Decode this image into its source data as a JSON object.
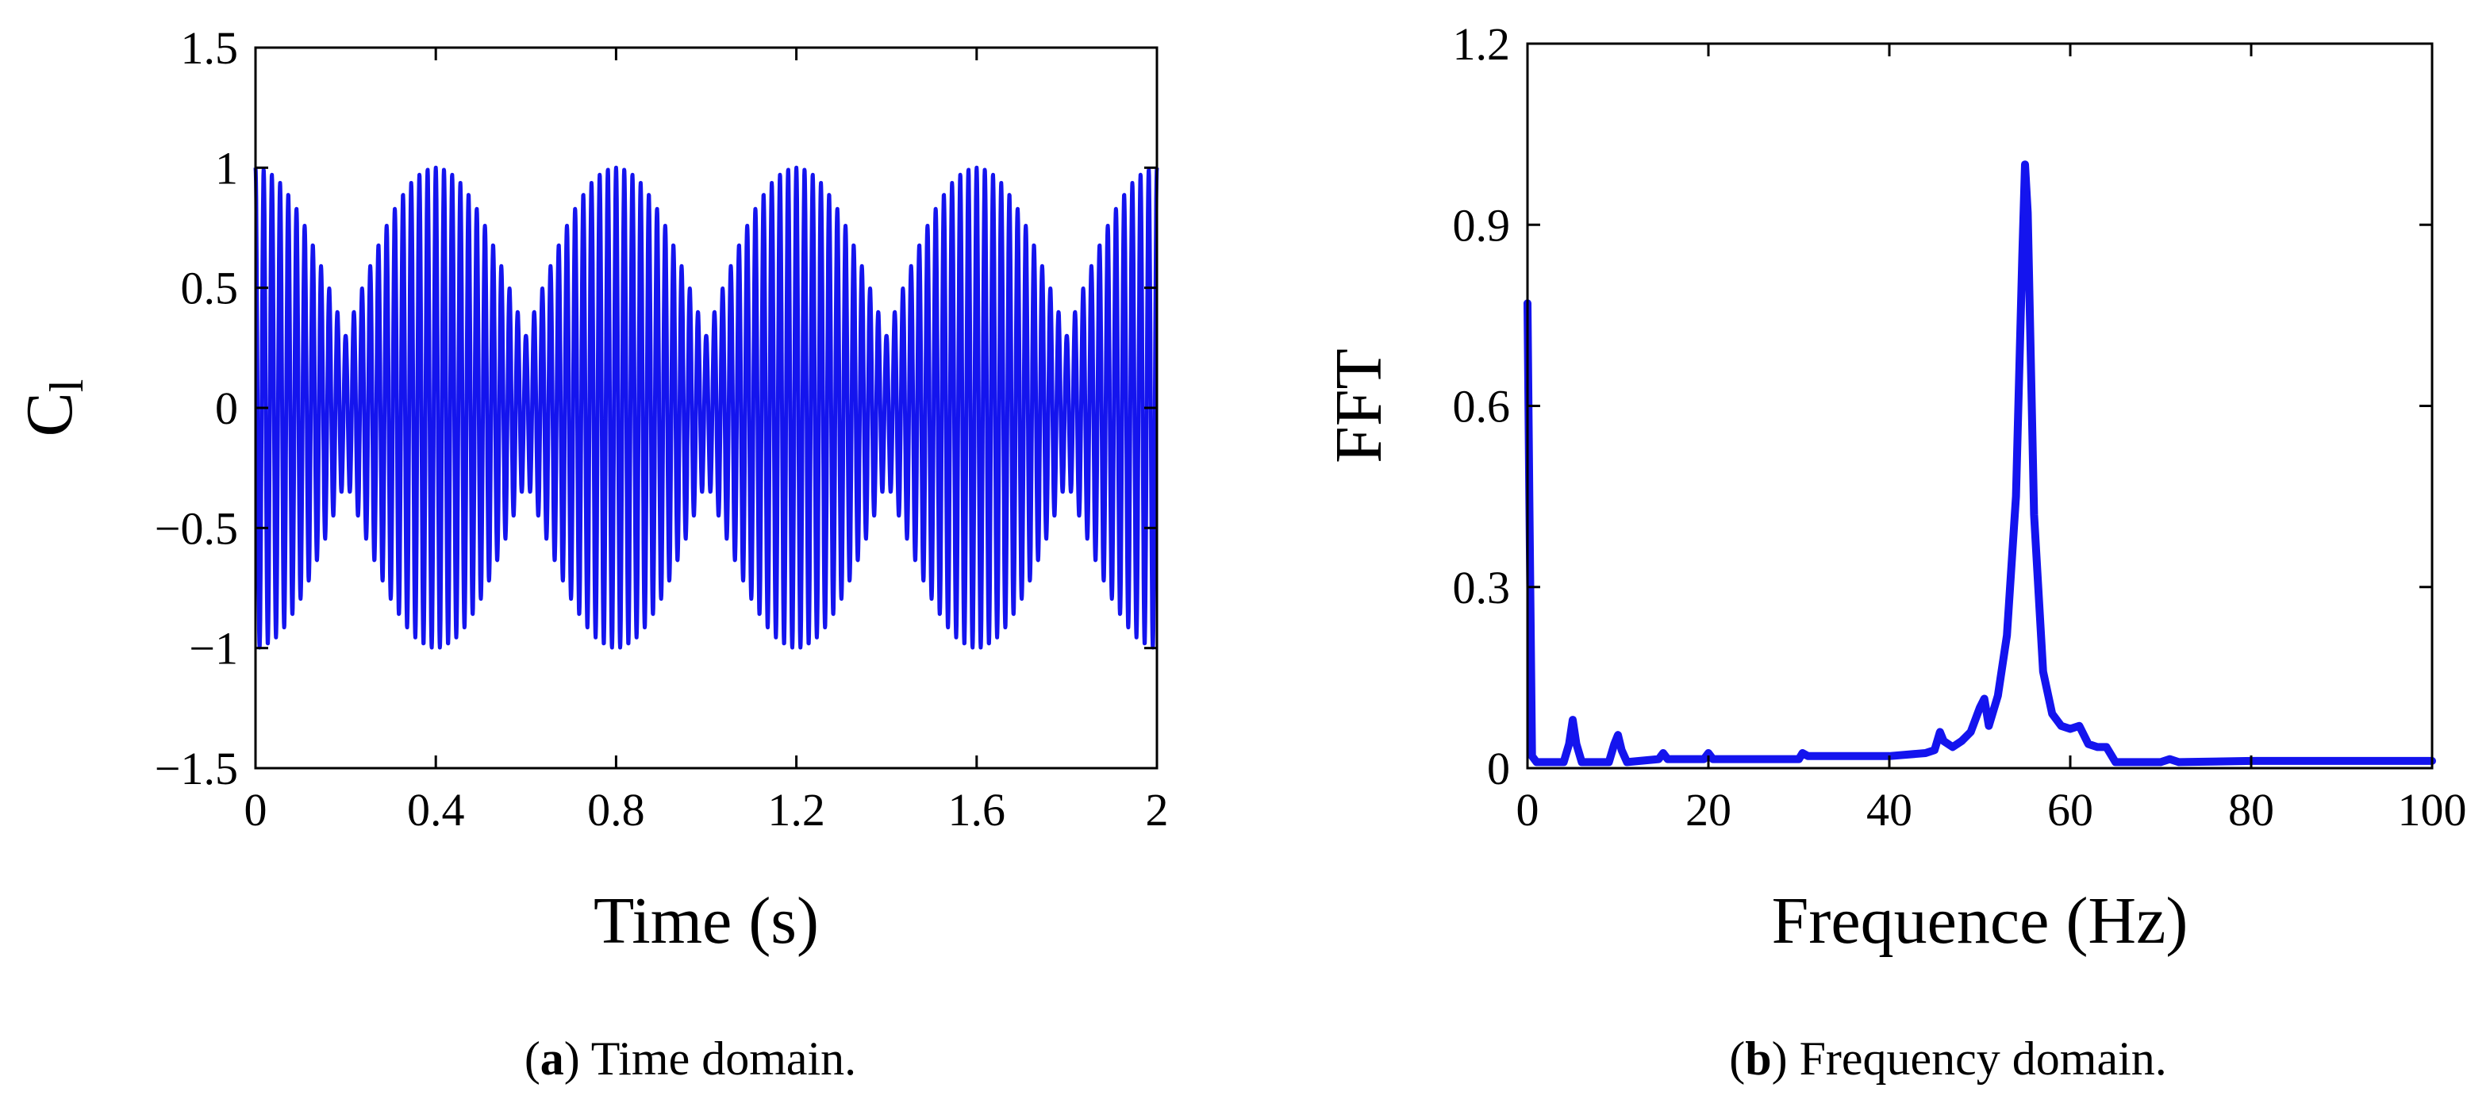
{
  "chart_data": [
    {
      "id": "a",
      "type": "line",
      "caption_label": "a",
      "caption_text": "Time domain.",
      "xlabel": "Time (s)",
      "ylabel": "C",
      "ylabel_subscript": "l",
      "xlim": [
        0,
        2
      ],
      "ylim": [
        -1.5,
        1.5
      ],
      "xticks": [
        "0",
        "0.4",
        "0.8",
        "1.2",
        "1.6",
        "2"
      ],
      "xtick_values": [
        0,
        0.4,
        0.8,
        1.2,
        1.6,
        2
      ],
      "yticks": [
        "1.5",
        "1",
        "0.5",
        "0",
        "-0.5",
        "-1",
        "-1.5"
      ],
      "ytick_values": [
        1.5,
        1,
        0.5,
        0,
        -0.5,
        -1,
        -1.5
      ],
      "series": [
        {
          "color": "#1414ee",
          "signal": {
            "kind": "beating oscillation",
            "carrier_frequency_hz": 55,
            "envelope_period_s": 0.4,
            "max_amplitude": 1.0,
            "min_envelope_amplitude": 0.3
          }
        }
      ]
    },
    {
      "id": "b",
      "type": "line",
      "caption_label": "b",
      "caption_text": "Frequency domain.",
      "xlabel": "Frequence (Hz)",
      "ylabel": "FFT",
      "xlim": [
        0,
        100
      ],
      "ylim": [
        0,
        1.2
      ],
      "xticks": [
        "0",
        "20",
        "40",
        "60",
        "80",
        "100"
      ],
      "xtick_values": [
        0,
        20,
        40,
        60,
        80,
        100
      ],
      "yticks": [
        "1.2",
        "0.9",
        "0.6",
        "0.3",
        "0"
      ],
      "ytick_values": [
        1.2,
        0.9,
        0.6,
        0.3,
        0
      ],
      "series": [
        {
          "color": "#1414ee",
          "x": [
            0,
            0.2,
            0.5,
            1,
            2,
            4,
            4.6,
            5,
            5.4,
            6,
            9,
            9.6,
            10,
            10.4,
            11,
            14.5,
            15,
            15.5,
            19.5,
            20,
            20.5,
            30,
            30.4,
            31,
            40,
            44,
            45,
            45.6,
            46,
            47,
            48,
            49,
            50,
            50.5,
            51,
            52,
            53,
            54,
            54.7,
            55,
            55.3,
            56,
            57,
            58,
            59,
            60,
            61,
            62,
            63,
            64,
            65,
            66,
            70,
            71,
            72,
            80,
            90,
            100
          ],
          "y": [
            0.77,
            0.45,
            0.02,
            0.01,
            0.01,
            0.01,
            0.04,
            0.08,
            0.04,
            0.01,
            0.01,
            0.04,
            0.055,
            0.03,
            0.01,
            0.015,
            0.025,
            0.015,
            0.015,
            0.025,
            0.015,
            0.015,
            0.025,
            0.02,
            0.02,
            0.025,
            0.03,
            0.06,
            0.045,
            0.035,
            0.045,
            0.06,
            0.1,
            0.115,
            0.07,
            0.12,
            0.22,
            0.45,
            0.85,
            1.0,
            0.92,
            0.42,
            0.16,
            0.09,
            0.07,
            0.065,
            0.07,
            0.04,
            0.035,
            0.035,
            0.01,
            0.01,
            0.01,
            0.015,
            0.01,
            0.012,
            0.012,
            0.012
          ]
        }
      ]
    }
  ]
}
